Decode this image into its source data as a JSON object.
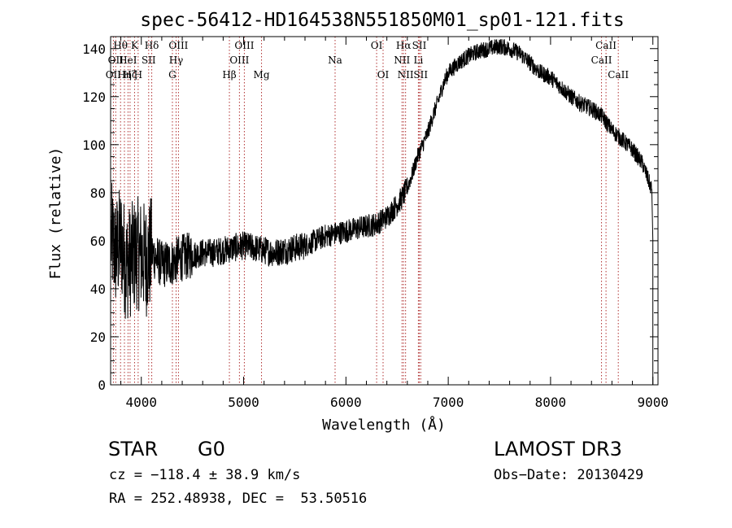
{
  "chart_data": {
    "type": "line",
    "title": "spec-56412-HD164538N551850M01_sp01-121.fits",
    "xlabel": "Wavelength (Å)",
    "ylabel": "Flux (relative)",
    "xlim": [
      3700,
      9050
    ],
    "ylim": [
      0,
      145
    ],
    "xticks": [
      4000,
      5000,
      6000,
      7000,
      8000,
      9000
    ],
    "yticks": [
      0,
      20,
      40,
      60,
      80,
      100,
      120,
      140
    ],
    "grid": false,
    "series": [
      {
        "name": "spectrum",
        "x": [
          3700,
          3750,
          3800,
          3850,
          3900,
          3950,
          4000,
          4050,
          4100,
          4200,
          4300,
          4400,
          4500,
          4600,
          4700,
          4800,
          4900,
          5000,
          5100,
          5200,
          5300,
          5400,
          5500,
          5600,
          5700,
          5800,
          5900,
          6000,
          6100,
          6200,
          6300,
          6400,
          6500,
          6550,
          6600,
          6650,
          6700,
          6750,
          6800,
          6850,
          6900,
          6950,
          7000,
          7100,
          7200,
          7300,
          7400,
          7500,
          7600,
          7700,
          7800,
          7900,
          8000,
          8100,
          8200,
          8300,
          8400,
          8500,
          8600,
          8700,
          8800,
          8900,
          8950,
          9000
        ],
        "y": [
          62,
          55,
          60,
          50,
          52,
          55,
          54,
          52,
          55,
          50,
          51,
          53,
          54,
          55,
          55,
          56,
          57,
          58,
          57,
          56,
          55,
          56,
          57,
          58,
          60,
          62,
          63,
          64,
          65,
          66,
          67,
          70,
          75,
          78,
          82,
          88,
          95,
          100,
          105,
          112,
          118,
          125,
          130,
          134,
          137,
          139,
          140,
          141,
          140,
          138,
          134,
          130,
          128,
          124,
          120,
          117,
          115,
          112,
          106,
          102,
          98,
          92,
          86,
          80
        ]
      }
    ],
    "lines": [
      {
        "x": 3727,
        "label": "OII",
        "row": 2
      },
      {
        "x": 3750,
        "label": "OII",
        "row": 1
      },
      {
        "x": 3797,
        "label": "Hθ",
        "row": 0
      },
      {
        "x": 3835,
        "label": "Hη",
        "row": 2
      },
      {
        "x": 3870,
        "label": "HeI",
        "row": 1
      },
      {
        "x": 3890,
        "label": "Hζ",
        "row": 2
      },
      {
        "x": 3934,
        "label": "K",
        "row": 0
      },
      {
        "x": 3969,
        "label": "H",
        "row": 2
      },
      {
        "x": 4072,
        "label": "SII",
        "row": 1
      },
      {
        "x": 4102,
        "label": "Hδ",
        "row": 0
      },
      {
        "x": 4304,
        "label": "G",
        "row": 2
      },
      {
        "x": 4340,
        "label": "Hγ",
        "row": 1
      },
      {
        "x": 4363,
        "label": "OIII",
        "row": 0
      },
      {
        "x": 4861,
        "label": "Hβ",
        "row": 2
      },
      {
        "x": 4959,
        "label": "OIII",
        "row": 1
      },
      {
        "x": 5007,
        "label": "OIII",
        "row": 0
      },
      {
        "x": 5175,
        "label": "Mg",
        "row": 2
      },
      {
        "x": 5894,
        "label": "Na",
        "row": 1
      },
      {
        "x": 6300,
        "label": "OI",
        "row": 0
      },
      {
        "x": 6363,
        "label": "OI",
        "row": 2
      },
      {
        "x": 6548,
        "label": "NII",
        "row": 1
      },
      {
        "x": 6563,
        "label": "Hα",
        "row": 0
      },
      {
        "x": 6583,
        "label": "NII",
        "row": 2
      },
      {
        "x": 6708,
        "label": "Li",
        "row": 1
      },
      {
        "x": 6717,
        "label": "SII",
        "row": 0
      },
      {
        "x": 6731,
        "label": "SII",
        "row": 2
      },
      {
        "x": 8498,
        "label": "CaII",
        "row": 1
      },
      {
        "x": 8542,
        "label": "CaII",
        "row": 0
      },
      {
        "x": 8662,
        "label": "CaII",
        "row": 2
      }
    ]
  },
  "info": {
    "object_class": "STAR",
    "subclass": "G0",
    "survey": "LAMOST DR3",
    "cz": "cz = −118.4 ± 38.9 km/s",
    "obs_date": "Obs−Date: 20130429",
    "coords": "RA = 252.48938, DEC =  53.50516"
  }
}
